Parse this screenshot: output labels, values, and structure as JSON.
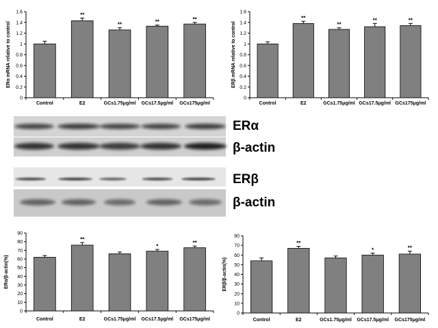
{
  "chart_data": [
    {
      "type": "bar",
      "panel": "top-left",
      "categories": [
        "Control",
        "E2",
        "GCs1.75μg/ml",
        "GCs17.5μg/ml",
        "GCs175μg/ml"
      ],
      "values": [
        1.0,
        1.43,
        1.26,
        1.33,
        1.37
      ],
      "errors": [
        0.05,
        0.05,
        0.04,
        0.02,
        0.03
      ],
      "significance": [
        "",
        "**",
        "**",
        "**",
        "**"
      ],
      "ylabel": "ERα mRNA relative to control",
      "ylim": [
        0,
        1.6
      ],
      "yticks": [
        "0",
        "0.2",
        "0.4",
        "0.6",
        "0.8",
        "1",
        "1.2",
        "1.4",
        "1.6"
      ],
      "grid": false,
      "color": "#808080"
    },
    {
      "type": "bar",
      "panel": "top-right",
      "categories": [
        "Control",
        "E2",
        "GCs1.75μg/ml",
        "GCs17.5μg/ml",
        "GCs175μg/ml"
      ],
      "values": [
        1.0,
        1.38,
        1.27,
        1.32,
        1.34
      ],
      "errors": [
        0.04,
        0.04,
        0.03,
        0.06,
        0.04
      ],
      "significance": [
        "",
        "**",
        "**",
        "**",
        "**"
      ],
      "ylabel": "ERβ mRNA relative to control",
      "ylim": [
        0,
        1.6
      ],
      "yticks": [
        "0",
        "0.2",
        "0.4",
        "0.6",
        "0.8",
        "1",
        "1.2",
        "1.4",
        "1.6"
      ],
      "grid": false,
      "color": "#808080"
    },
    {
      "type": "bar",
      "panel": "bottom-left",
      "categories": [
        "Control",
        "E2",
        "GCs1.75μg/ml",
        "GCs17.5μg/ml",
        "GCs175μg/ml"
      ],
      "values": [
        62,
        76,
        66,
        69,
        73
      ],
      "errors": [
        2,
        3,
        2,
        2,
        2
      ],
      "significance": [
        "",
        "**",
        "",
        "*",
        "**"
      ],
      "ylabel": "ERα/β-actin(%)",
      "ylim": [
        0,
        90
      ],
      "yticks": [
        "0",
        "10",
        "20",
        "30",
        "40",
        "50",
        "60",
        "70",
        "80",
        "90"
      ],
      "grid": false,
      "color": "#808080"
    },
    {
      "type": "bar",
      "panel": "bottom-right",
      "categories": [
        "Control",
        "E2",
        "GCs1.75μg/ml",
        "GCs17.5μg/ml",
        "GCs175μg/ml"
      ],
      "values": [
        54,
        67,
        57,
        60,
        61
      ],
      "errors": [
        3,
        2,
        2,
        2,
        3
      ],
      "significance": [
        "",
        "**",
        "",
        "*",
        "**"
      ],
      "ylabel": "ERβ/β-actin(%)",
      "ylim": [
        0,
        80
      ],
      "yticks": [
        "0",
        "10",
        "20",
        "30",
        "40",
        "50",
        "60",
        "70",
        "80"
      ],
      "grid": false,
      "color": "#808080"
    }
  ],
  "blots": [
    {
      "label": "ERα",
      "band": "ERα"
    },
    {
      "label": "β-actin",
      "band": "β-actin"
    },
    {
      "label": "ERβ",
      "band": "ERβ"
    },
    {
      "label": "β-actin",
      "band": "β-actin"
    }
  ]
}
